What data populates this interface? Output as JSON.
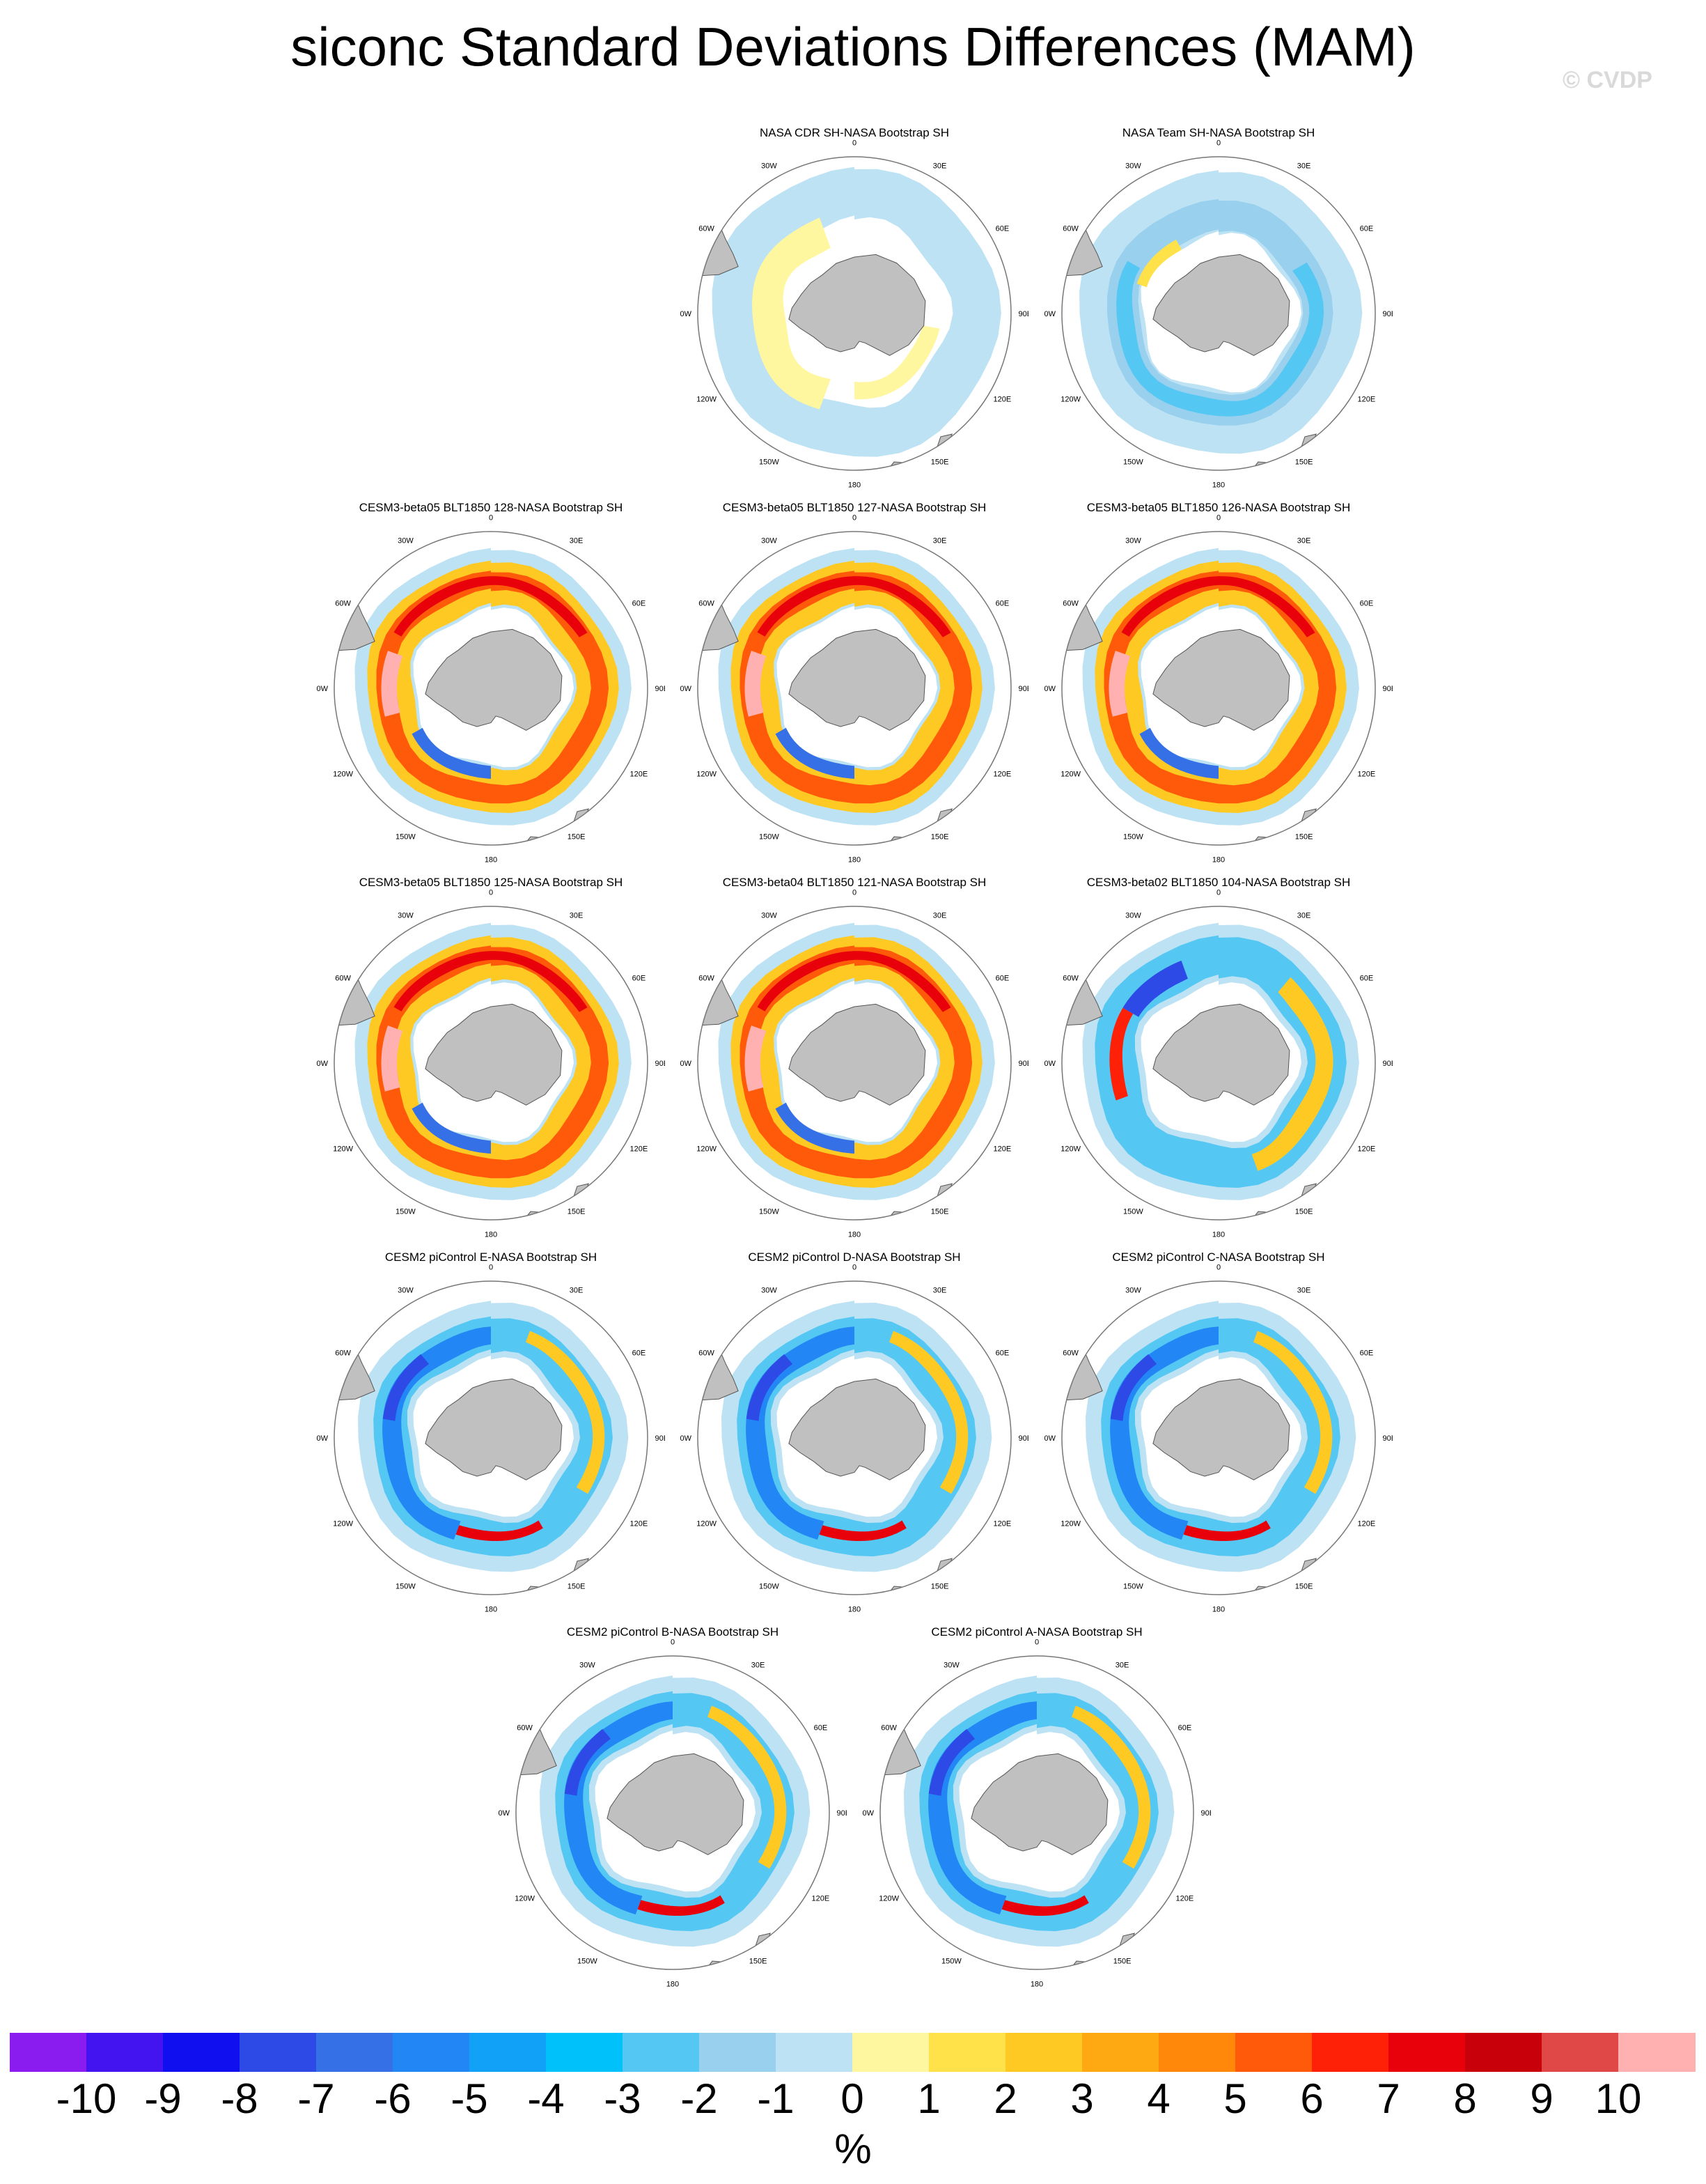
{
  "title": "siconc Standard Deviations Differences (MAM)",
  "credit": "© CVDP",
  "lon_labels": [
    "0",
    "30E",
    "60E",
    "90E",
    "120E",
    "150E",
    "180",
    "150W",
    "120W",
    "90W",
    "60W",
    "30W"
  ],
  "panels": [
    {
      "title": "NASA CDR SH-NASA Bootstrap SH",
      "style": "cdr"
    },
    {
      "title": "NASA Team SH-NASA Bootstrap SH",
      "style": "team"
    },
    {
      "title": "CESM3-beta05 BLT1850 128-NASA Bootstrap SH",
      "style": "warm"
    },
    {
      "title": "CESM3-beta05 BLT1850 127-NASA Bootstrap SH",
      "style": "warm"
    },
    {
      "title": "CESM3-beta05 BLT1850 126-NASA Bootstrap SH",
      "style": "warm"
    },
    {
      "title": "CESM3-beta05 BLT1850 125-NASA Bootstrap SH",
      "style": "warm"
    },
    {
      "title": "CESM3-beta04 BLT1850 121-NASA Bootstrap SH",
      "style": "warm"
    },
    {
      "title": "CESM3-beta02 BLT1850 104-NASA Bootstrap SH",
      "style": "mixed"
    },
    {
      "title": "CESM2 piControl E-NASA Bootstrap SH",
      "style": "cool"
    },
    {
      "title": "CESM2 piControl D-NASA Bootstrap SH",
      "style": "cool"
    },
    {
      "title": "CESM2 piControl C-NASA Bootstrap SH",
      "style": "cool"
    },
    {
      "title": "CESM2 piControl B-NASA Bootstrap SH",
      "style": "cool"
    },
    {
      "title": "CESM2 piControl A-NASA Bootstrap SH",
      "style": "cool"
    }
  ],
  "colorbar": {
    "colors": [
      "#8a1cf0",
      "#4414f0",
      "#0f0ff0",
      "#2d4ae6",
      "#3670e6",
      "#2286f4",
      "#11a2f7",
      "#00c1fa",
      "#55c7f3",
      "#98d0ee",
      "#bde2f4",
      "#fff7a0",
      "#ffe14a",
      "#ffc924",
      "#ffa912",
      "#ff880a",
      "#ff5a0a",
      "#ff2008",
      "#e8000a",
      "#c8000a",
      "#e04848",
      "#ffb0b0"
    ],
    "ticks": [
      "-10",
      "-9",
      "-8",
      "-7",
      "-6",
      "-5",
      "-4",
      "-3",
      "-2",
      "-1",
      "0",
      "1",
      "2",
      "3",
      "4",
      "5",
      "6",
      "7",
      "8",
      "9",
      "10"
    ],
    "units": "%"
  }
}
